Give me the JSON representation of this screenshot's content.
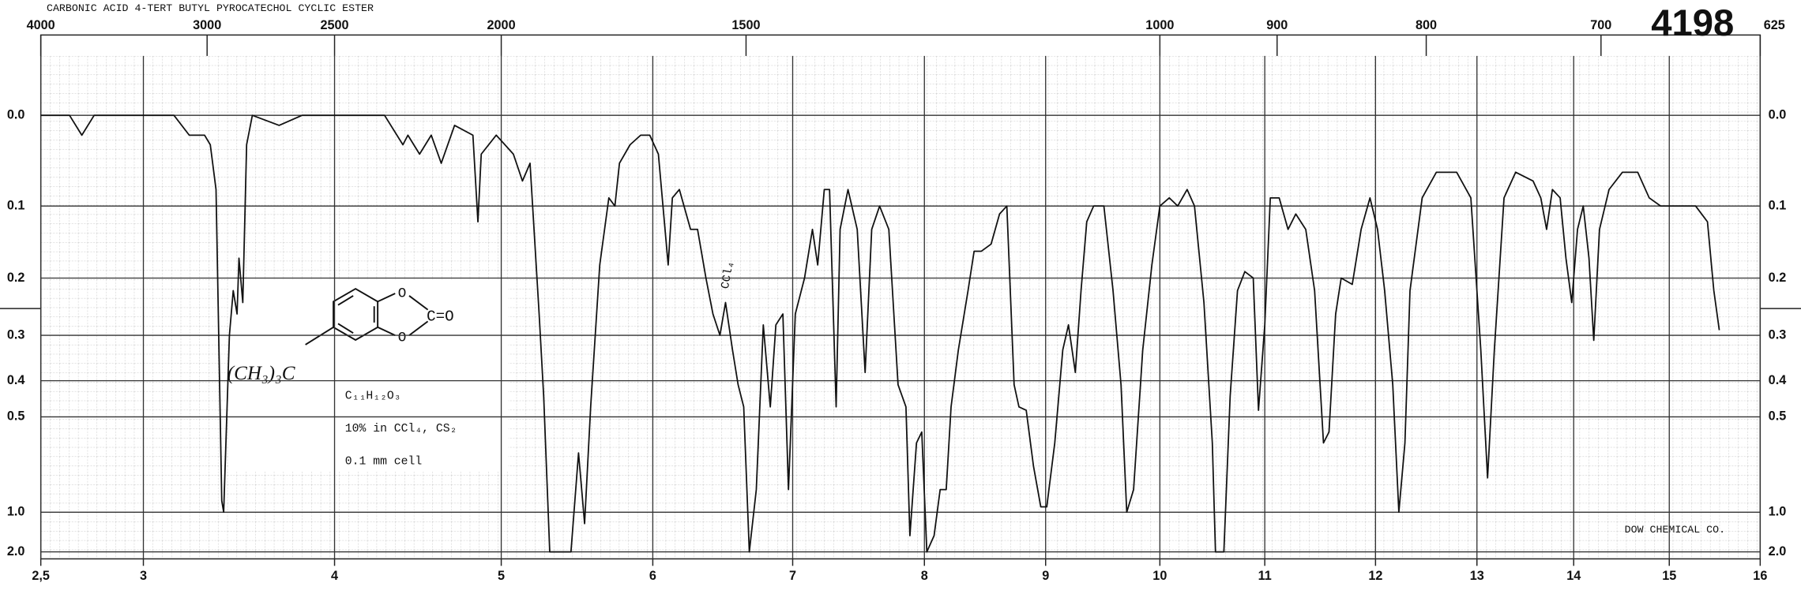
{
  "chart_data": {
    "type": "line",
    "title": "CARBONIC ACID 4-TERT BUTYL PYROCATECHOL CYCLIC ESTER",
    "catalog_number": "4198",
    "source": "DOW CHEMICAL CO.",
    "annotation": "CCl₄",
    "structure": {
      "substituent": "(CH₃)₃C",
      "ring_oxygen": "O",
      "carbonyl": "C=O"
    },
    "notes": [
      "C₁₁H₁₂O₃",
      "10% in CCl₄, CS₂",
      "0.1 mm cell"
    ],
    "color": "#111111",
    "yscale": "absorbance",
    "grid": true,
    "xlim": [
      2.5,
      16
    ],
    "xticks": [
      {
        "value": 2.5,
        "label": "2,5"
      },
      3,
      4,
      5,
      6,
      7,
      8,
      9,
      10,
      11,
      12,
      13,
      14,
      15,
      16
    ],
    "x2lim": [
      4000,
      625
    ],
    "x2ticks": [
      4000,
      3000,
      2500,
      2000,
      1500,
      1000,
      900,
      800,
      700,
      625
    ],
    "ylim": [
      0,
      2
    ],
    "yticks": [
      {
        "value": 0,
        "label": "0.0"
      },
      0.1,
      0.2,
      0.3,
      0.4,
      0.5,
      {
        "value": 1,
        "label": "1.0"
      },
      {
        "value": 2,
        "label": "2.0"
      }
    ],
    "x": [
      2.5,
      2.64,
      2.7,
      2.76,
      2.98,
      3.16,
      3.24,
      3.32,
      3.35,
      3.38,
      3.41,
      3.42,
      3.45,
      3.47,
      3.49,
      3.5,
      3.52,
      3.54,
      3.57,
      3.71,
      3.83,
      4.09,
      4.3,
      4.41,
      4.44,
      4.51,
      4.58,
      4.64,
      4.72,
      4.83,
      4.86,
      4.88,
      4.97,
      5.08,
      5.14,
      5.19,
      5.25,
      5.28,
      5.32,
      5.46,
      5.51,
      5.55,
      5.59,
      5.65,
      5.71,
      5.75,
      5.78,
      5.85,
      5.92,
      5.98,
      6.04,
      6.11,
      6.14,
      6.19,
      6.27,
      6.32,
      6.38,
      6.43,
      6.48,
      6.52,
      6.57,
      6.61,
      6.65,
      6.69,
      6.74,
      6.79,
      6.84,
      6.88,
      6.93,
      6.97,
      7.02,
      7.09,
      7.15,
      7.19,
      7.24,
      7.28,
      7.33,
      7.36,
      7.42,
      7.49,
      7.55,
      7.6,
      7.66,
      7.73,
      7.8,
      7.86,
      7.89,
      7.94,
      7.98,
      8.02,
      8.08,
      8.13,
      8.18,
      8.22,
      8.28,
      8.36,
      8.41,
      8.47,
      8.55,
      8.62,
      8.68,
      8.74,
      8.78,
      8.84,
      8.9,
      8.96,
      9.01,
      9.08,
      9.15,
      9.2,
      9.26,
      9.31,
      9.36,
      9.42,
      9.51,
      9.59,
      9.66,
      9.71,
      9.77,
      9.85,
      9.93,
      10.0,
      10.09,
      10.17,
      10.26,
      10.33,
      10.42,
      10.5,
      10.53,
      10.61,
      10.67,
      10.74,
      10.81,
      10.89,
      10.94,
      11.0,
      11.05,
      11.13,
      11.21,
      11.28,
      11.37,
      11.45,
      11.53,
      11.58,
      11.64,
      11.69,
      11.79,
      11.87,
      11.95,
      12.02,
      12.09,
      12.17,
      12.23,
      12.29,
      12.34,
      12.46,
      12.6,
      12.8,
      12.94,
      13.04,
      13.11,
      13.18,
      13.28,
      13.4,
      13.58,
      13.66,
      13.72,
      13.78,
      13.86,
      13.92,
      13.98,
      14.04,
      14.1,
      14.16,
      14.21,
      14.27,
      14.37,
      14.51,
      14.67,
      14.79,
      14.91,
      15.1,
      15.29,
      15.42,
      15.49,
      15.55
    ],
    "values": [
      0,
      0,
      0.02,
      0,
      0,
      0,
      0.02,
      0.02,
      0.03,
      0.08,
      0.9,
      1.0,
      0.3,
      0.22,
      0.26,
      0.17,
      0.24,
      0.03,
      0,
      0.01,
      0,
      0,
      0,
      0.03,
      0.02,
      0.04,
      0.02,
      0.05,
      0.01,
      0.02,
      0.12,
      0.04,
      0.02,
      0.04,
      0.07,
      0.05,
      0.26,
      0.44,
      2.0,
      2.0,
      0.63,
      1.13,
      0.47,
      0.18,
      0.09,
      0.1,
      0.05,
      0.03,
      0.02,
      0.02,
      0.04,
      0.18,
      0.09,
      0.08,
      0.13,
      0.13,
      0.2,
      0.26,
      0.3,
      0.24,
      0.33,
      0.41,
      0.47,
      2.0,
      0.82,
      0.28,
      0.47,
      0.28,
      0.26,
      0.82,
      0.26,
      0.2,
      0.13,
      0.18,
      0.08,
      0.08,
      0.47,
      0.13,
      0.08,
      0.13,
      0.38,
      0.13,
      0.1,
      0.13,
      0.41,
      0.47,
      1.33,
      0.59,
      0.55,
      2.0,
      1.33,
      0.82,
      0.82,
      0.47,
      0.33,
      0.22,
      0.16,
      0.16,
      0.15,
      0.11,
      0.1,
      0.41,
      0.47,
      0.48,
      0.69,
      0.95,
      0.95,
      0.59,
      0.33,
      0.28,
      0.38,
      0.22,
      0.12,
      0.1,
      0.1,
      0.22,
      0.41,
      1.0,
      0.82,
      0.33,
      0.18,
      0.1,
      0.09,
      0.1,
      0.08,
      0.1,
      0.24,
      0.59,
      2.0,
      2.0,
      0.44,
      0.22,
      0.19,
      0.2,
      0.48,
      0.28,
      0.09,
      0.09,
      0.13,
      0.11,
      0.13,
      0.22,
      0.59,
      0.55,
      0.26,
      0.2,
      0.21,
      0.13,
      0.09,
      0.13,
      0.22,
      0.41,
      1.0,
      0.59,
      0.22,
      0.09,
      0.06,
      0.06,
      0.09,
      0.33,
      0.75,
      0.33,
      0.09,
      0.06,
      0.07,
      0.09,
      0.13,
      0.08,
      0.09,
      0.17,
      0.24,
      0.13,
      0.1,
      0.17,
      0.31,
      0.13,
      0.08,
      0.06,
      0.06,
      0.09,
      0.1,
      0.1,
      0.1,
      0.12,
      0.22,
      0.29
    ]
  }
}
